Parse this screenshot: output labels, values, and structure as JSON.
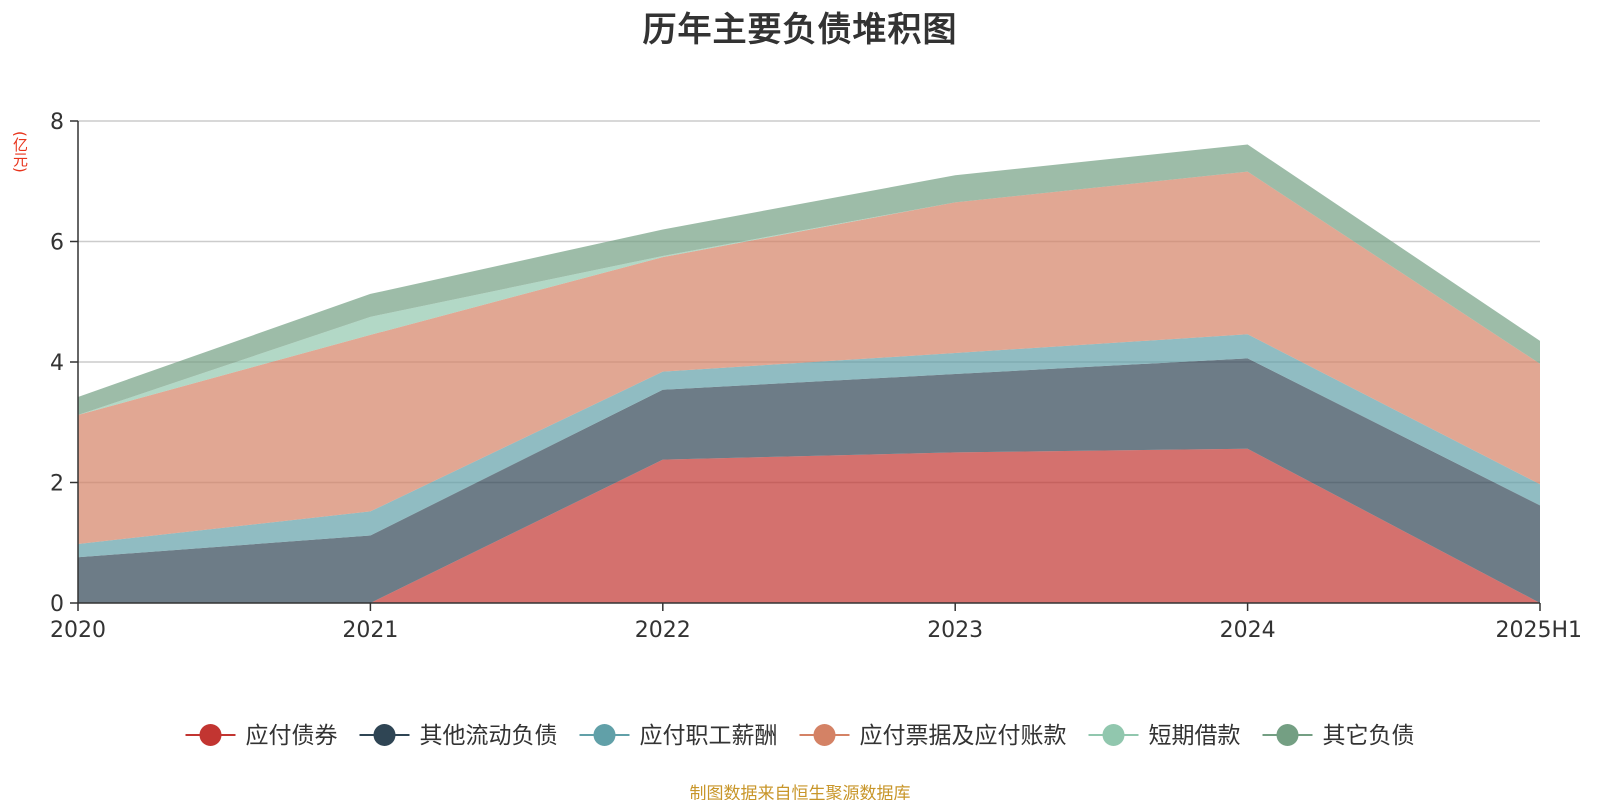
{
  "chart_data": {
    "type": "area",
    "stacked": true,
    "title": "历年主要负债堆积图",
    "unit_label": "(亿元)",
    "categories": [
      "2020",
      "2021",
      "2022",
      "2023",
      "2024",
      "2025H1"
    ],
    "ylim": [
      0,
      8
    ],
    "yticks": [
      "0",
      "2",
      "4",
      "6",
      "8"
    ],
    "grid": true,
    "legend_position": "bottom",
    "series": [
      {
        "name": "应付债券",
        "color": "#c23531",
        "values": [
          0,
          0,
          2.38,
          2.5,
          2.56,
          0
        ]
      },
      {
        "name": "其他流动负债",
        "color": "#2f4554",
        "values": [
          0.76,
          1.12,
          1.16,
          1.3,
          1.5,
          1.62
        ]
      },
      {
        "name": "应付职工薪酬",
        "color": "#61a0a8",
        "values": [
          0.22,
          0.4,
          0.3,
          0.35,
          0.4,
          0.35
        ]
      },
      {
        "name": "应付票据及应付账款",
        "color": "#d48265",
        "values": [
          2.14,
          2.93,
          1.9,
          2.5,
          2.7,
          2.0
        ]
      },
      {
        "name": "短期借款",
        "color": "#91c7ae",
        "values": [
          0.0,
          0.3,
          0.02,
          0.0,
          0.0,
          0.0
        ]
      },
      {
        "name": "其它负债",
        "color": "#749f83",
        "values": [
          0.3,
          0.38,
          0.44,
          0.45,
          0.45,
          0.38
        ]
      }
    ]
  },
  "source_note": "制图数据来自恒生聚源数据库"
}
